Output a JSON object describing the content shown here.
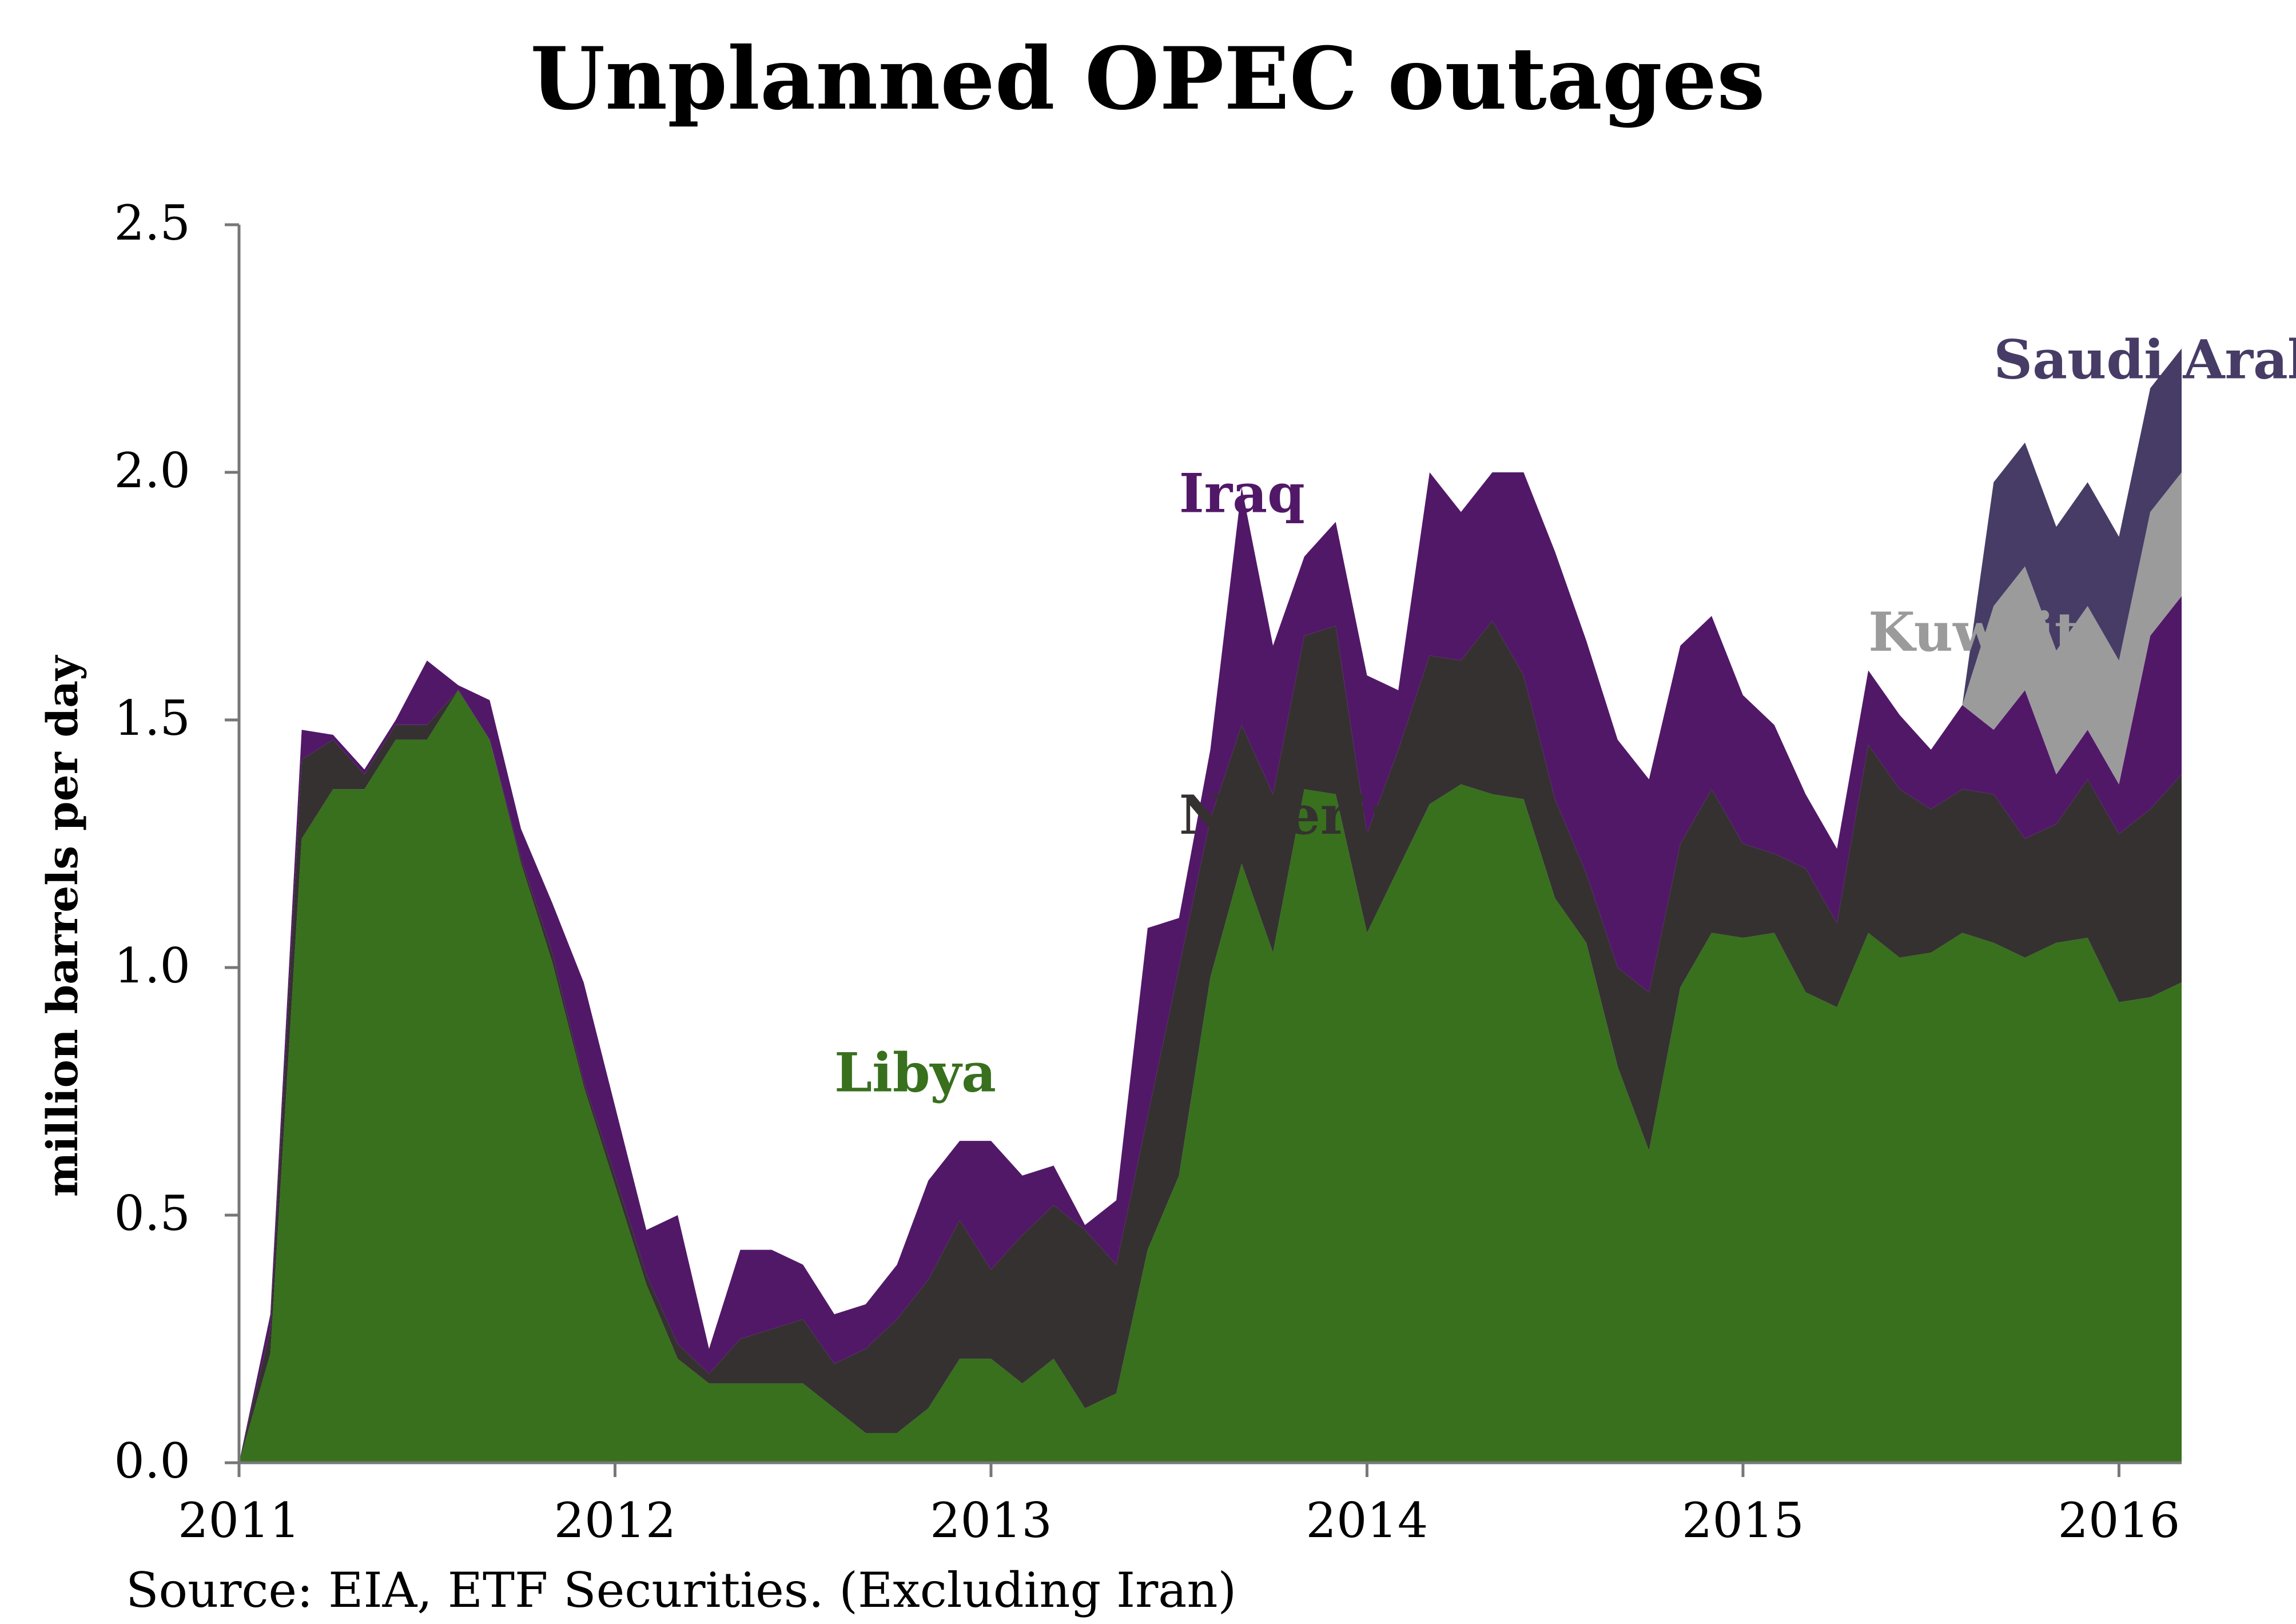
{
  "chart_data": {
    "type": "area",
    "title": "Unplanned OPEC outages",
    "ylabel": "million barrels per day",
    "xlabel": "",
    "source": "Source: EIA, ETF Securities. (Excluding Iran)",
    "ylim": [
      0,
      2.5
    ],
    "yticks": [
      "0.0",
      "0.5",
      "1.0",
      "1.5",
      "2.0",
      "2.5"
    ],
    "xticks": [
      "2011",
      "2012",
      "2013",
      "2014",
      "2015",
      "2016"
    ],
    "x_range": [
      "2011-01",
      "2016-03"
    ],
    "x": [
      "2011-01",
      "2011-02",
      "2011-03",
      "2011-04",
      "2011-05",
      "2011-06",
      "2011-07",
      "2011-08",
      "2011-09",
      "2011-10",
      "2011-11",
      "2011-12",
      "2012-01",
      "2012-02",
      "2012-03",
      "2012-04",
      "2012-05",
      "2012-06",
      "2012-07",
      "2012-08",
      "2012-09",
      "2012-10",
      "2012-11",
      "2012-12",
      "2013-01",
      "2013-02",
      "2013-03",
      "2013-04",
      "2013-05",
      "2013-06",
      "2013-07",
      "2013-08",
      "2013-09",
      "2013-10",
      "2013-11",
      "2013-12",
      "2014-01",
      "2014-02",
      "2014-03",
      "2014-04",
      "2014-05",
      "2014-06",
      "2014-07",
      "2014-08",
      "2014-09",
      "2014-10",
      "2014-11",
      "2014-12",
      "2015-01",
      "2015-02",
      "2015-03",
      "2015-04",
      "2015-05",
      "2015-06",
      "2015-07",
      "2015-08",
      "2015-09",
      "2015-10",
      "2015-11",
      "2015-12",
      "2016-01",
      "2016-02",
      "2016-03"
    ],
    "stacked": true,
    "series": [
      {
        "name": "Libya",
        "color": "#38701e",
        "values": [
          0.0,
          0.22,
          1.26,
          1.36,
          1.36,
          1.46,
          1.46,
          1.56,
          1.46,
          1.21,
          1.01,
          0.76,
          0.56,
          0.36,
          0.21,
          0.16,
          0.16,
          0.16,
          0.16,
          0.11,
          0.06,
          0.06,
          0.11,
          0.21,
          0.21,
          0.16,
          0.21,
          0.11,
          0.14,
          0.43,
          0.58,
          0.98,
          1.21,
          1.03,
          1.36,
          1.35,
          1.07,
          1.2,
          1.33,
          1.37,
          1.35,
          1.34,
          1.14,
          1.05,
          0.8,
          0.63,
          0.96,
          1.07,
          1.06,
          1.07,
          0.95,
          0.92,
          1.07,
          1.02,
          1.03,
          1.07,
          1.05,
          1.02,
          1.05,
          1.06,
          0.93,
          0.94,
          0.97
        ]
      },
      {
        "name": "Nigeria",
        "color": "#353131",
        "values": [
          0.0,
          0.05,
          0.16,
          0.1,
          0.03,
          0.03,
          0.03,
          0.0,
          0.0,
          0.01,
          0.02,
          0.01,
          0.02,
          0.02,
          0.03,
          0.02,
          0.09,
          0.11,
          0.13,
          0.09,
          0.17,
          0.23,
          0.26,
          0.28,
          0.18,
          0.3,
          0.31,
          0.36,
          0.26,
          0.27,
          0.42,
          0.32,
          0.28,
          0.32,
          0.31,
          0.34,
          0.2,
          0.24,
          0.3,
          0.25,
          0.35,
          0.25,
          0.2,
          0.14,
          0.2,
          0.32,
          0.29,
          0.29,
          0.19,
          0.16,
          0.25,
          0.17,
          0.38,
          0.34,
          0.29,
          0.29,
          0.3,
          0.24,
          0.24,
          0.32,
          0.34,
          0.38,
          0.42
        ]
      },
      {
        "name": "Iraq",
        "color": "#521868",
        "values": [
          0.0,
          0.03,
          0.06,
          0.01,
          0.01,
          0.01,
          0.13,
          0.01,
          0.08,
          0.06,
          0.1,
          0.2,
          0.14,
          0.09,
          0.26,
          0.05,
          0.18,
          0.16,
          0.11,
          0.1,
          0.09,
          0.11,
          0.2,
          0.16,
          0.26,
          0.12,
          0.08,
          0.01,
          0.13,
          0.38,
          0.1,
          0.14,
          0.48,
          0.3,
          0.16,
          0.21,
          0.32,
          0.12,
          0.37,
          0.3,
          0.3,
          0.41,
          0.5,
          0.47,
          0.46,
          0.43,
          0.4,
          0.35,
          0.3,
          0.26,
          0.15,
          0.15,
          0.15,
          0.15,
          0.12,
          0.17,
          0.13,
          0.3,
          0.1,
          0.1,
          0.1,
          0.35,
          0.36
        ]
      },
      {
        "name": "Kuwait",
        "color": "#9b9b9b",
        "values": [
          0,
          0,
          0,
          0,
          0,
          0,
          0,
          0,
          0,
          0,
          0,
          0,
          0,
          0,
          0,
          0,
          0,
          0,
          0,
          0,
          0,
          0,
          0,
          0,
          0,
          0,
          0,
          0,
          0,
          0,
          0,
          0,
          0,
          0,
          0,
          0,
          0,
          0,
          0,
          0,
          0,
          0,
          0,
          0,
          0,
          0,
          0,
          0,
          0,
          0,
          0,
          0,
          0,
          0,
          0,
          0.0,
          0.25,
          0.25,
          0.25,
          0.25,
          0.25,
          0.25,
          0.25
        ]
      },
      {
        "name": "Saudi Arabia",
        "color": "#473c66",
        "values": [
          0,
          0,
          0,
          0,
          0,
          0,
          0,
          0,
          0,
          0,
          0,
          0,
          0,
          0,
          0,
          0,
          0,
          0,
          0,
          0,
          0,
          0,
          0,
          0,
          0,
          0,
          0,
          0,
          0,
          0,
          0,
          0,
          0,
          0,
          0,
          0,
          0,
          0,
          0,
          0,
          0,
          0,
          0,
          0,
          0,
          0,
          0,
          0,
          0,
          0,
          0,
          0,
          0,
          0,
          0,
          0.0,
          0.25,
          0.25,
          0.25,
          0.25,
          0.25,
          0.25,
          0.25
        ]
      }
    ],
    "annotations": [
      {
        "text": "Libya",
        "x": "2012-08",
        "y": 0.75,
        "color": "#38701e"
      },
      {
        "text": "Nigeria",
        "x": "2013-07",
        "y": 1.27,
        "color": "#353131"
      },
      {
        "text": "Iraq",
        "x": "2013-07",
        "y": 1.92,
        "color": "#521868"
      },
      {
        "text": "Kuwait",
        "x": "2015-05",
        "y": 1.64,
        "color": "#9b9b9b"
      },
      {
        "text": "Saudi Arabia",
        "x": "2015-09",
        "y": 2.19,
        "color": "#473c66"
      }
    ],
    "grid": false,
    "legend": "inline-labels"
  }
}
